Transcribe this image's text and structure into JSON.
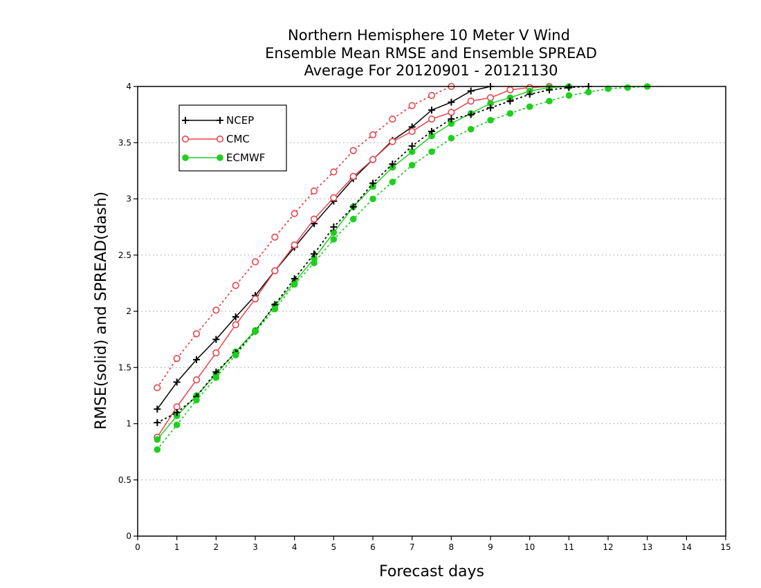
{
  "chart_data": {
    "type": "line",
    "title_lines": [
      "Northern Hemisphere 10 Meter V Wind",
      "Ensemble Mean RMSE and Ensemble SPREAD",
      "Average For 20120901 - 20121130"
    ],
    "xlabel": "Forecast days",
    "ylabel": "RMSE(solid) and SPREAD(dash)",
    "xlim": [
      0,
      15
    ],
    "ylim": [
      0,
      4
    ],
    "x_ticks": [
      "0",
      "1",
      "2",
      "3",
      "4",
      "5",
      "6",
      "7",
      "8",
      "9",
      "10",
      "11",
      "12",
      "13",
      "14",
      "15"
    ],
    "y_ticks": [
      "0",
      "0.5",
      "1",
      "1.5",
      "2",
      "2.5",
      "3",
      "3.5",
      "4"
    ],
    "grid": "horizontal dotted",
    "legend_position": "top-left",
    "x": [
      0.5,
      1,
      1.5,
      2,
      2.5,
      3,
      3.5,
      4,
      4.5,
      5,
      5.5,
      6,
      6.5,
      7,
      7.5,
      8,
      8.5,
      9,
      9.5,
      10,
      10.5,
      11,
      11.5,
      12,
      12.5,
      13
    ],
    "series": [
      {
        "name": "NCEP",
        "metric": "RMSE",
        "line": "solid",
        "marker": "plus",
        "color": "#000000",
        "values": [
          1.13,
          1.37,
          1.57,
          1.75,
          1.95,
          2.14,
          2.36,
          2.57,
          2.78,
          2.98,
          3.18,
          3.35,
          3.52,
          3.64,
          3.79,
          3.86,
          3.96,
          4.0,
          null,
          null,
          null,
          null,
          null,
          null,
          null,
          null
        ]
      },
      {
        "name": "CMC",
        "metric": "RMSE",
        "line": "solid",
        "marker": "open-circle",
        "color": "#e8434a",
        "values": [
          0.88,
          1.15,
          1.39,
          1.63,
          1.88,
          2.11,
          2.36,
          2.59,
          2.82,
          3.01,
          3.2,
          3.35,
          3.51,
          3.6,
          3.71,
          3.77,
          3.87,
          3.9,
          3.97,
          3.99,
          4.0,
          null,
          null,
          null,
          null,
          null
        ]
      },
      {
        "name": "ECMWF",
        "metric": "RMSE",
        "line": "solid",
        "marker": "filled-circle",
        "color": "#1ecf1e",
        "values": [
          0.86,
          1.07,
          1.25,
          1.44,
          1.64,
          1.83,
          2.05,
          2.26,
          2.47,
          2.7,
          2.93,
          3.11,
          3.28,
          3.42,
          3.56,
          3.67,
          3.76,
          3.85,
          3.9,
          3.96,
          3.99,
          4.0,
          null,
          null,
          null,
          null
        ]
      },
      {
        "metric": "SPREAD",
        "line": "dotted",
        "marker": "plus",
        "color": "#000000",
        "values": [
          1.01,
          1.1,
          1.24,
          1.46,
          1.63,
          1.82,
          2.06,
          2.29,
          2.51,
          2.75,
          2.93,
          3.14,
          3.31,
          3.47,
          3.6,
          3.71,
          3.75,
          3.81,
          3.87,
          3.93,
          3.97,
          3.99,
          4.0,
          null,
          null,
          null
        ]
      },
      {
        "metric": "SPREAD",
        "line": "dotted",
        "marker": "open-circle",
        "color": "#e8434a",
        "values": [
          1.32,
          1.58,
          1.8,
          2.01,
          2.23,
          2.44,
          2.66,
          2.87,
          3.07,
          3.24,
          3.43,
          3.57,
          3.71,
          3.83,
          3.92,
          4.0,
          null,
          null,
          null,
          null,
          null,
          null,
          null,
          null,
          null,
          null
        ]
      },
      {
        "metric": "SPREAD",
        "line": "dotted",
        "marker": "filled-circle",
        "color": "#1ecf1e",
        "values": [
          0.77,
          0.99,
          1.21,
          1.41,
          1.61,
          1.82,
          2.02,
          2.24,
          2.43,
          2.64,
          2.82,
          3.0,
          3.15,
          3.3,
          3.42,
          3.54,
          3.62,
          3.7,
          3.76,
          3.82,
          3.87,
          3.92,
          3.95,
          3.98,
          3.99,
          4.0
        ]
      }
    ]
  }
}
